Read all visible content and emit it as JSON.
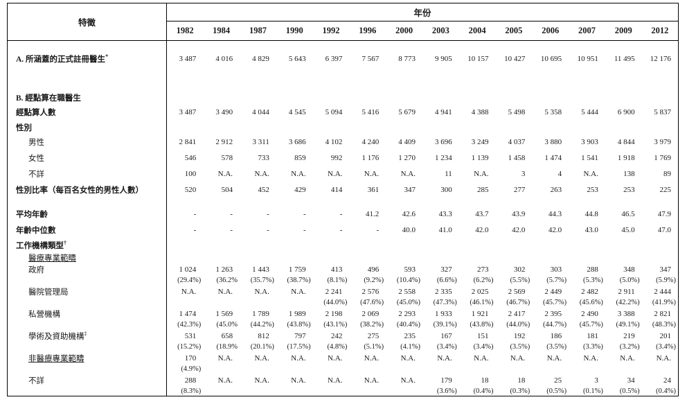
{
  "header": {
    "characteristic_label": "特徵",
    "year_group_label": "年份",
    "years": [
      "1982",
      "1984",
      "1987",
      "1990",
      "1992",
      "1996",
      "2000",
      "2003",
      "2004",
      "2005",
      "2006",
      "2007",
      "2009",
      "2012"
    ]
  },
  "rows": [
    {
      "kind": "a",
      "label": "A.  所涵蓋的正式註冊醫生",
      "sup": "*",
      "bold": true,
      "indent": 0,
      "values": [
        "3 487",
        "4 016",
        "4 829",
        "5 643",
        "6 397",
        "7 567",
        "8 773",
        "9 905",
        "10 157",
        "10 427",
        "10 695",
        "10 951",
        "11 495",
        "12 176"
      ]
    },
    {
      "kind": "gap"
    },
    {
      "kind": "label",
      "label": "B.  經點算在職醫生",
      "bold": true,
      "indent": 0
    },
    {
      "kind": "data",
      "label": "經點算人數",
      "bold": true,
      "indent": 0,
      "values": [
        "3 487",
        "3 490",
        "4 044",
        "4 545",
        "5 094",
        "5 416",
        "5 679",
        "4 941",
        "4 388",
        "5 498",
        "5 358",
        "5 444",
        "6 900",
        "5 837"
      ]
    },
    {
      "kind": "label",
      "label": "性別",
      "bold": true,
      "indent": 0
    },
    {
      "kind": "data",
      "label": "男性",
      "indent": 1,
      "values": [
        "2 841",
        "2 912",
        "3 311",
        "3 686",
        "4 102",
        "4 240",
        "4 409",
        "3 696",
        "3 249",
        "4 037",
        "3 880",
        "3 903",
        "4 844",
        "3 979"
      ]
    },
    {
      "kind": "data",
      "label": "女性",
      "indent": 1,
      "values": [
        "546",
        "578",
        "733",
        "859",
        "992",
        "1 176",
        "1 270",
        "1 234",
        "1 139",
        "1 458",
        "1 474",
        "1 541",
        "1 918",
        "1 769"
      ]
    },
    {
      "kind": "data",
      "label": "不詳",
      "indent": 1,
      "values": [
        "100",
        "N.A.",
        "N.A.",
        "N.A.",
        "N.A.",
        "N.A.",
        "N.A.",
        "11",
        "N.A.",
        "3",
        "4",
        "N.A.",
        "138",
        "89"
      ]
    },
    {
      "kind": "data",
      "label": "性別比率（每百名女性的男性人數）",
      "bold": true,
      "indent": 0,
      "values": [
        "520",
        "504",
        "452",
        "429",
        "414",
        "361",
        "347",
        "300",
        "285",
        "277",
        "263",
        "253",
        "253",
        "225"
      ]
    },
    {
      "kind": "gapsm"
    },
    {
      "kind": "data",
      "label": "平均年齡",
      "bold": true,
      "indent": 0,
      "values": [
        "-",
        "-",
        "-",
        "-",
        "-",
        "41.2",
        "42.6",
        "43.3",
        "43.7",
        "43.9",
        "44.3",
        "44.8",
        "46.5",
        "47.9"
      ]
    },
    {
      "kind": "data",
      "label": "年齡中位數",
      "bold": true,
      "indent": 0,
      "values": [
        "-",
        "-",
        "-",
        "-",
        "-",
        "-",
        "40.0",
        "41.0",
        "42.0",
        "42.0",
        "42.0",
        "43.0",
        "45.0",
        "47.0"
      ]
    },
    {
      "kind": "label",
      "label": "工作機構類型",
      "sup": "†",
      "bold": true,
      "indent": 0
    },
    {
      "kind": "subhead",
      "label": "醫療專業範疇",
      "indent": 1,
      "underline": true
    },
    {
      "kind": "sub",
      "label": "政府",
      "indent": 1,
      "values": [
        "1 024",
        "1 263",
        "1 443",
        "1 759",
        "413",
        "496",
        "593",
        "327",
        "273",
        "302",
        "303",
        "288",
        "348",
        "347"
      ],
      "pct": [
        "(29.4%)",
        "(36.2%",
        "(35.7%)",
        "(38.7%)",
        "(8.1%)",
        "(9.2%)",
        "(10.4%)",
        "(6.6%)",
        "(6.2%)",
        "(5.5%)",
        "(5.7%)",
        "(5.3%)",
        "(5.0%)",
        "(5.9%)"
      ]
    },
    {
      "kind": "sub",
      "label": "醫院管理局",
      "indent": 1,
      "values": [
        "N.A.",
        "N.A.",
        "N.A.",
        "N.A.",
        "2 241",
        "2 576",
        "2 558",
        "2 335",
        "2 025",
        "2 569",
        "2 449",
        "2 482",
        "2 911",
        "2 444"
      ],
      "pct": [
        "",
        "",
        "",
        "",
        "(44.0%)",
        "(47.6%)",
        "(45.0%)",
        "(47.3%)",
        "(46.1%)",
        "(46.7%)",
        "(45.7%)",
        "(45.6%)",
        "(42.2%)",
        "(41.9%)"
      ]
    },
    {
      "kind": "sub",
      "label": "私營機構",
      "indent": 1,
      "values": [
        "1 474",
        "1 569",
        "1 789",
        "1 989",
        "2 198",
        "2 069",
        "2 293",
        "1 933",
        "1 921",
        "2 417",
        "2 395",
        "2 490",
        "3 388",
        "2 821"
      ],
      "pct": [
        "(42.3%)",
        "(45.0%",
        "(44.2%)",
        "(43.8%)",
        "(43.1%)",
        "(38.2%)",
        "(40.4%)",
        "(39.1%)",
        "(43.8%)",
        "(44.0%)",
        "(44.7%)",
        "(45.7%)",
        "(49.1%)",
        "(48.3%)"
      ]
    },
    {
      "kind": "sub",
      "label": "學術及資助機構",
      "sup": "‡",
      "indent": 1,
      "values": [
        "531",
        "658",
        "812",
        "797",
        "242",
        "275",
        "235",
        "167",
        "151",
        "192",
        "186",
        "181",
        "219",
        "201"
      ],
      "pct": [
        "(15.2%)",
        "(18.9%",
        "(20.1%)",
        "(17.5%)",
        "(4.8%)",
        "(5.1%)",
        "(4.1%)",
        "(3.4%)",
        "(3.4%)",
        "(3.5%)",
        "(3.5%)",
        "(3.3%)",
        "(3.2%)",
        "(3.4%)"
      ]
    },
    {
      "kind": "sub",
      "label": "非醫療專業範疇",
      "indent": 1,
      "underline": true,
      "values": [
        "170",
        "N.A.",
        "N.A.",
        "N.A.",
        "N.A.",
        "N.A.",
        "N.A.",
        "N.A.",
        "N.A.",
        "N.A.",
        "N.A.",
        "N.A.",
        "N.A.",
        "N.A."
      ],
      "pct": [
        "(4.9%)",
        "",
        "",
        "",
        "",
        "",
        "",
        "",
        "",
        "",
        "",
        "",
        "",
        ""
      ]
    },
    {
      "kind": "sub",
      "label": "不詳",
      "indent": 1,
      "values": [
        "288",
        "N.A.",
        "N.A.",
        "N.A.",
        "N.A.",
        "N.A.",
        "N.A.",
        "179",
        "18",
        "18",
        "25",
        "3",
        "34",
        "24"
      ],
      "pct": [
        "(8.3%)",
        "",
        "",
        "",
        "",
        "",
        "",
        "(3.6%)",
        "(0.4%)",
        "(0.3%)",
        "(0.5%)",
        "(0.1%)",
        "(0.5%)",
        "(0.4%)"
      ]
    }
  ]
}
